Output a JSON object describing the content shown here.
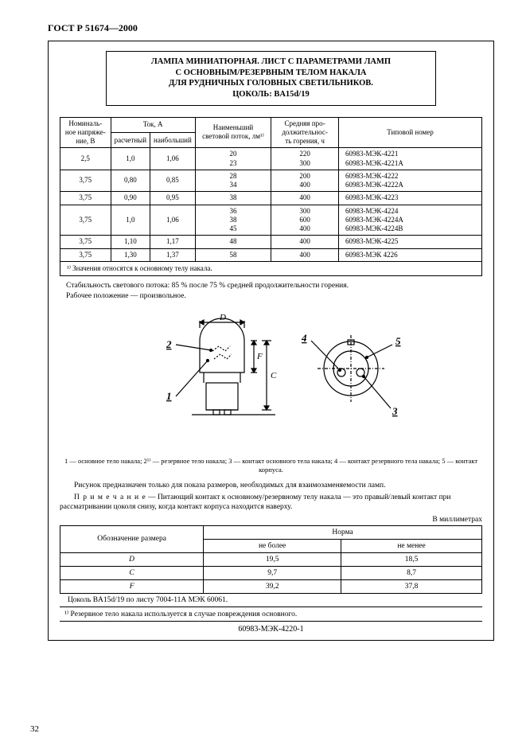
{
  "standard": "ГОСТ Р 51674—2000",
  "title": {
    "l1": "ЛАМПА МИНИАТЮРНАЯ. ЛИСТ С ПАРАМЕТРАМИ ЛАМП",
    "l2": "С ОСНОВНЫМ/РЕЗЕРВНЫМ ТЕЛОМ НАКАЛА",
    "l3": "ДЛЯ РУДНИЧНЫХ ГОЛОВНЫХ СВЕТИЛЬНИКОВ.",
    "l4": "ЦОКОЛЬ: BA15d/19"
  },
  "table1": {
    "head": {
      "voltage": "Номиналь-\nное напряже-\nние, В",
      "current": "Ток, А",
      "curr_calc": "расчетный",
      "curr_max": "наибольший",
      "flux": "Наименьший\nсветовой поток, лм¹⁾",
      "life": "Средняя про-\nдолжительнос-\nть горения, ч",
      "typenum": "Типовой номер"
    },
    "rows": [
      {
        "v": "2,5",
        "ic": "1,0",
        "im": "1,06",
        "flux": "20\n23",
        "life": "220\n300",
        "tn": "60983-МЭК-4221\n60983-МЭК-4221А"
      },
      {
        "v": "3,75",
        "ic": "0,80",
        "im": "0,85",
        "flux": "28\n34",
        "life": "200\n400",
        "tn": "60983-МЭК-4222\n60983-МЭК-4222А"
      },
      {
        "v": "3,75",
        "ic": "0,90",
        "im": "0,95",
        "flux": "38",
        "life": "400",
        "tn": "60983-МЭК-4223"
      },
      {
        "v": "3,75",
        "ic": "1,0",
        "im": "1,06",
        "flux": "36\n38\n45",
        "life": "300\n600\n400",
        "tn": "60983-МЭК-4224\n60983-МЭК-4224А\n60983-МЭК-4224В"
      },
      {
        "v": "3,75",
        "ic": "1,10",
        "im": "1,17",
        "flux": "48",
        "life": "400",
        "tn": "60983-МЭК-4225"
      },
      {
        "v": "3,75",
        "ic": "1,30",
        "im": "1,37",
        "flux": "58",
        "life": "400",
        "tn": "60983-МЭК 4226"
      }
    ],
    "footnote": "¹⁾ Значения относятся к основному телу накала."
  },
  "notes": {
    "stability": "Стабильность светового потока: 85 % после 75 % средней продолжительности горения.",
    "position": "Рабочее положение — произвольное."
  },
  "diagram": {
    "labels": {
      "D": "D",
      "F": "F",
      "C": "C",
      "n1": "1",
      "n2": "2",
      "n3": "3",
      "n4": "4",
      "n5": "5"
    },
    "caption": "1 — основное тело накала; 2¹⁾ — резервное тело накала; 3 — контакт основного тела накала; 4 — контакт резервного тела накала; 5 — контакт корпуса."
  },
  "para1": "Рисунок предназначен только для показа размеров, необходимых для взаимозаменяемости ламп.",
  "para2_label": "П р и м е ч а н и е",
  "para2_text": " — Питающий контакт к основному/резервному телу накала — это правый/левый контакт при рассматривании цоколя снизу, когда контакт корпуса находится наверху.",
  "mm": "В миллиметрах",
  "dims": {
    "head": {
      "desig": "Обозначение размера",
      "norm": "Норма",
      "max": "не более",
      "min": "не менее"
    },
    "rows": [
      {
        "d": "D",
        "max": "19,5",
        "min": "18,5"
      },
      {
        "d": "C",
        "max": "9,7",
        "min": "8,7"
      },
      {
        "d": "F",
        "max": "39,2",
        "min": "37,8"
      }
    ]
  },
  "cap_ref": "Цоколь BA15d/19 по листу 7004-11А МЭК 60061.",
  "reserve_note": "¹⁾ Резервное тело накала используется в случае повреждения основного.",
  "sheet_num": "60983-МЭК-4220-1",
  "page": "32"
}
